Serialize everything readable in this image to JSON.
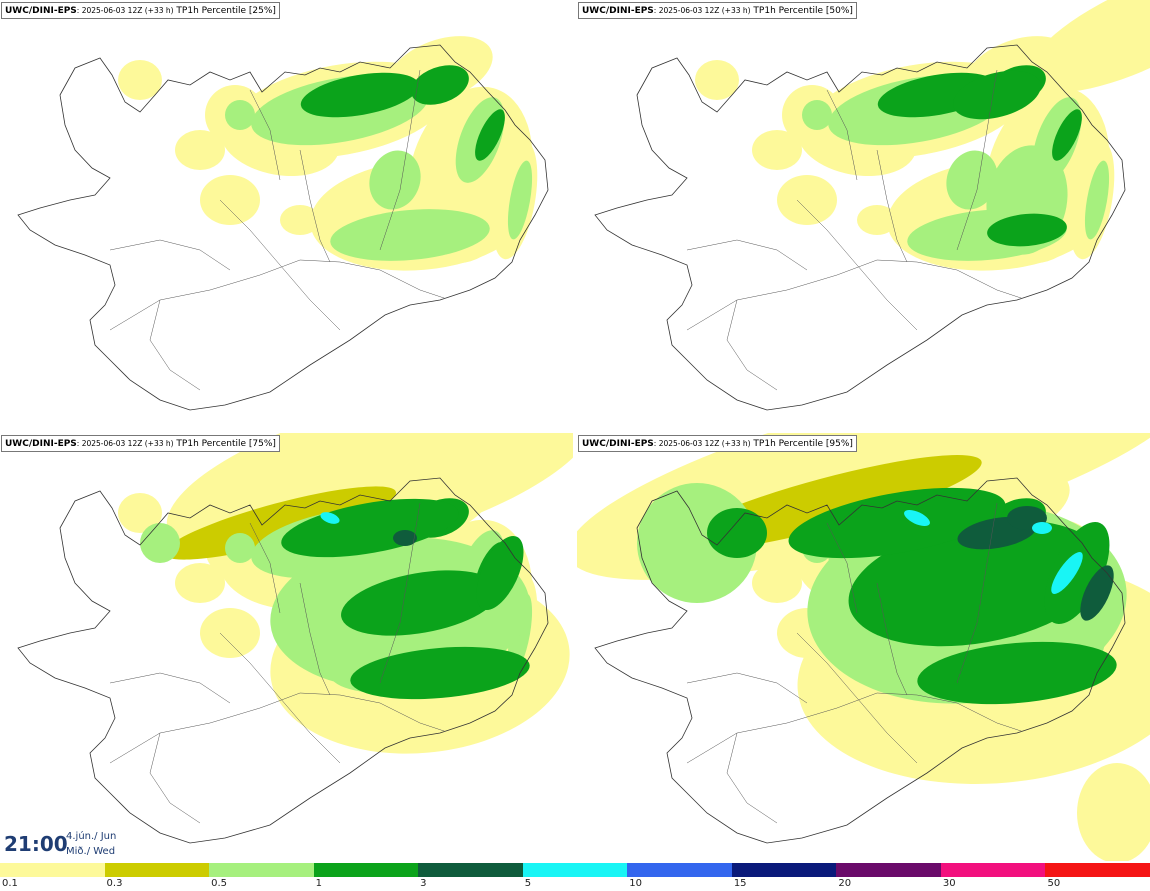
{
  "panels": [
    {
      "source": "UWC/DINI-EPS",
      "run": ": 2025-06-03 12Z (+33 h)",
      "field": " TP1h Percentile [25%]"
    },
    {
      "source": "UWC/DINI-EPS",
      "run": ": 2025-06-03 12Z (+33 h)",
      "field": " TP1h Percentile [50%]"
    },
    {
      "source": "UWC/DINI-EPS",
      "run": ": 2025-06-03 12Z (+33 h)",
      "field": " TP1h Percentile [75%]"
    },
    {
      "source": "UWC/DINI-EPS",
      "run": ": 2025-06-03 12Z (+33 h)",
      "field": " TP1h Percentile [95%]"
    }
  ],
  "timestamp": {
    "time": "21:00",
    "date_line": "4.jún./ Jun",
    "day_line": "Mið./ Wed"
  },
  "legend": {
    "labels": [
      "0.1",
      "0.3",
      "0.5",
      "1",
      "3",
      "5",
      "10",
      "15",
      "20",
      "30",
      "50"
    ],
    "colors": [
      "#fdf99a",
      "#cccc00",
      "#a6f07e",
      "#0ba31b",
      "#0f5c3c",
      "#19f5f5",
      "#3366ee",
      "#0a1a7a",
      "#6a0a6a",
      "#f2107e",
      "#f51515"
    ]
  },
  "map_colors": {
    "land": "#ffffff",
    "outline": "#333333",
    "level_01": "#fdf99a",
    "level_03": "#cccc00",
    "level_05": "#a6f07e",
    "level_1": "#0ba31b",
    "level_3": "#0f5c3c",
    "level_5": "#19f5f5"
  }
}
